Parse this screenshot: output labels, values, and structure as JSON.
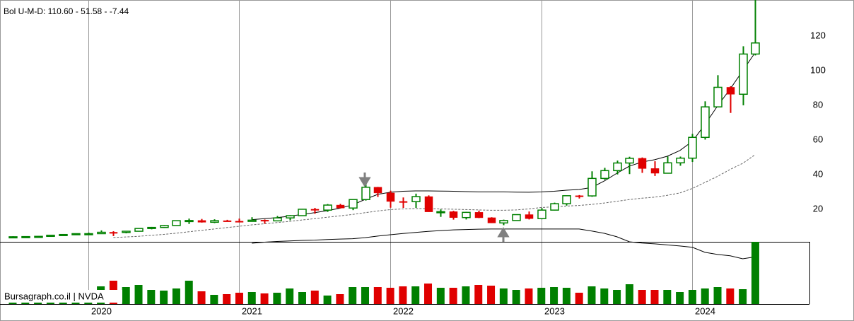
{
  "chart_data": {
    "type": "candlestick",
    "header": "Bol U-M-D: 110.60 - 51.58 - -7.44",
    "watermark": "Bursagraph.co.il | NVDA",
    "up_color": "#008000",
    "down_color": "#e00000",
    "open": [
      4.1,
      4.1,
      4.2,
      4.35,
      5.0,
      5.4,
      5.9,
      5.9,
      6.7,
      6.6,
      7.3,
      8.9,
      9.5,
      10.6,
      13.4,
      13.5,
      12.5,
      13.4,
      13.1,
      13.0,
      13.7,
      13.3,
      15.0,
      16.3,
      20.0,
      19.5,
      22.4,
      20.7,
      25.6,
      32.7,
      29.4,
      24.5,
      24.4,
      27.3,
      18.5,
      18.6,
      15.2,
      18.2,
      15.1,
      12.1,
      13.5,
      16.9,
      14.6,
      19.5,
      23.2,
      27.8,
      27.7,
      37.8,
      42.3,
      46.7,
      49.4,
      43.5,
      40.8,
      46.8,
      49.5,
      61.5,
      79.1,
      90.4,
      86.4,
      109.6
    ],
    "high": [
      4.4,
      4.4,
      4.6,
      5.1,
      5.6,
      6.0,
      6.5,
      7.8,
      7.3,
      7.5,
      9.1,
      9.8,
      10.9,
      13.5,
      14.6,
      14.4,
      14.2,
      13.9,
      14.6,
      15.4,
      14.1,
      16.1,
      16.6,
      20.2,
      20.8,
      23.0,
      23.1,
      25.6,
      34.6,
      32.9,
      30.7,
      26.8,
      29.0,
      28.0,
      19.9,
      19.1,
      18.5,
      19.2,
      15.4,
      14.0,
      17.0,
      18.7,
      20.7,
      23.8,
      27.8,
      28.2,
      41.9,
      43.9,
      48.1,
      50.3,
      49.9,
      47.7,
      50.5,
      50.4,
      63.5,
      82.3,
      97.4,
      91.0,
      114.1,
      140.8
    ],
    "low": [
      4.0,
      3.9,
      4.1,
      4.3,
      4.9,
      5.2,
      5.7,
      5.9,
      4.5,
      6.1,
      7.2,
      8.4,
      9.2,
      10.6,
      11.5,
      12.3,
      12.0,
      12.9,
      12.4,
      12.9,
      11.6,
      13.1,
      13.6,
      16.1,
      17.4,
      18.5,
      20.5,
      19.5,
      25.0,
      27.1,
      20.9,
      20.8,
      20.8,
      18.5,
      15.6,
      14.0,
      14.1,
      14.9,
      12.0,
      10.8,
      13.3,
      14.1,
      14.2,
      19.3,
      22.1,
      26.2,
      27.2,
      37.0,
      40.1,
      40.3,
      41.0,
      39.2,
      40.8,
      45.1,
      47.3,
      60.2,
      79.1,
      75.6,
      80.0,
      108.8
    ],
    "close": [
      4.1,
      4.2,
      4.35,
      5.0,
      5.4,
      5.9,
      5.9,
      6.7,
      6.6,
      7.3,
      8.9,
      9.5,
      10.6,
      13.4,
      13.5,
      12.5,
      13.4,
      13.1,
      13.0,
      13.7,
      13.3,
      15.0,
      16.3,
      20.0,
      19.5,
      22.4,
      20.7,
      25.6,
      32.7,
      29.4,
      24.5,
      24.4,
      27.3,
      18.5,
      18.6,
      15.2,
      18.2,
      15.1,
      12.1,
      13.5,
      16.9,
      14.6,
      19.5,
      23.2,
      27.8,
      27.7,
      37.8,
      42.3,
      46.7,
      49.4,
      43.5,
      40.8,
      46.8,
      49.5,
      61.5,
      79.1,
      90.4,
      86.4,
      109.6,
      116.0
    ],
    "volume": [
      16,
      18,
      17,
      20,
      18,
      19,
      20,
      25,
      33,
      24,
      27,
      20,
      19,
      22,
      33,
      18,
      13,
      14,
      16,
      17,
      15,
      16,
      22,
      17,
      19,
      12,
      14,
      24,
      24,
      24,
      23,
      25,
      25,
      29,
      23,
      23,
      25,
      27,
      26,
      22,
      20,
      22,
      23,
      24,
      23,
      16,
      25,
      22,
      20,
      28,
      20,
      20,
      20,
      17,
      20,
      22,
      24,
      22,
      21,
      88
    ],
    "vlim": [
      0,
      88
    ],
    "bands": {
      "upper": [
        null,
        null,
        null,
        null,
        null,
        null,
        null,
        null,
        null,
        null,
        null,
        null,
        null,
        null,
        null,
        null,
        null,
        null,
        null,
        14.0,
        14.6,
        15.2,
        16.0,
        17.0,
        18.0,
        19.2,
        20.6,
        22.5,
        25.7,
        28.6,
        29.8,
        30.4,
        30.6,
        30.6,
        30.5,
        30.4,
        30.2,
        30.0,
        30.0,
        30.0,
        29.9,
        29.8,
        30.0,
        30.4,
        31.0,
        31.4,
        32.6,
        36.3,
        40.8,
        44.9,
        47.3,
        48.6,
        50.6,
        53.9,
        59.2,
        69.0,
        79.6,
        89.4,
        100.0,
        110.6
      ],
      "middle": [
        null,
        null,
        null,
        null,
        null,
        null,
        null,
        null,
        3.7,
        4.0,
        4.4,
        4.9,
        5.5,
        6.2,
        7.0,
        7.8,
        8.6,
        9.4,
        10.2,
        11.0,
        11.6,
        12.3,
        13.0,
        13.8,
        14.6,
        15.4,
        16.2,
        17.0,
        18.0,
        19.0,
        19.8,
        20.2,
        20.4,
        20.4,
        20.2,
        20.0,
        19.8,
        19.6,
        19.4,
        19.4,
        19.6,
        20.2,
        21.0,
        21.4,
        21.8,
        22.2,
        22.8,
        23.6,
        24.6,
        25.6,
        26.4,
        27.0,
        28.0,
        29.4,
        32.0,
        35.5,
        39.0,
        43.0,
        46.5,
        51.58
      ],
      "lower": [
        null,
        null,
        null,
        null,
        null,
        null,
        null,
        null,
        null,
        null,
        null,
        null,
        null,
        null,
        null,
        null,
        null,
        null,
        null,
        0.4,
        1.0,
        1.4,
        1.7,
        2.0,
        2.2,
        2.5,
        2.8,
        3.0,
        3.6,
        4.5,
        5.3,
        6.0,
        6.6,
        7.2,
        7.7,
        8.1,
        8.3,
        8.5,
        8.6,
        8.6,
        8.6,
        8.6,
        8.6,
        8.6,
        8.6,
        8.6,
        7.4,
        6.1,
        4.1,
        1.2,
        0.5,
        0.0,
        -0.6,
        -1.2,
        -2.0,
        -4.9,
        -6.1,
        -6.9,
        -8.6,
        -7.44
      ]
    },
    "xlim": [
      -1.01,
      63.3
    ],
    "xticks": [
      {
        "value": 6,
        "label": "2020"
      },
      {
        "value": 18,
        "label": "2021"
      },
      {
        "value": 30,
        "label": "2022"
      },
      {
        "value": 42,
        "label": "2023"
      },
      {
        "value": 54,
        "label": "2024"
      }
    ],
    "ylim": [
      1.2,
      140.8
    ],
    "yticks": [
      20,
      40,
      60,
      80,
      100,
      120
    ]
  }
}
